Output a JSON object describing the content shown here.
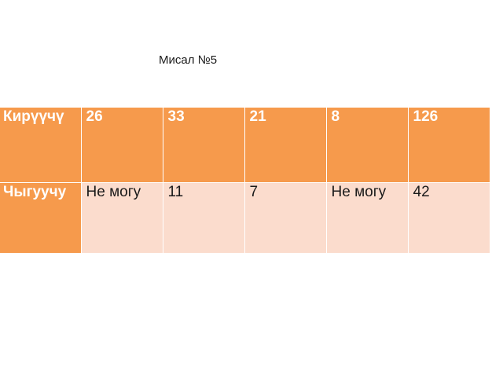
{
  "title": "Мисал №5",
  "table": {
    "rows": [
      {
        "header": "Кирүүчү",
        "cells": [
          "26",
          "33",
          "21",
          "8",
          "126"
        ]
      },
      {
        "header": "Чыгуучу",
        "cells": [
          "Не могу",
          "11",
          "7",
          "Не могу",
          "42"
        ]
      }
    ]
  },
  "colors": {
    "header_fill": "#f69a4c",
    "body_fill": "#fbdccd",
    "header_text": "#ffffff"
  }
}
